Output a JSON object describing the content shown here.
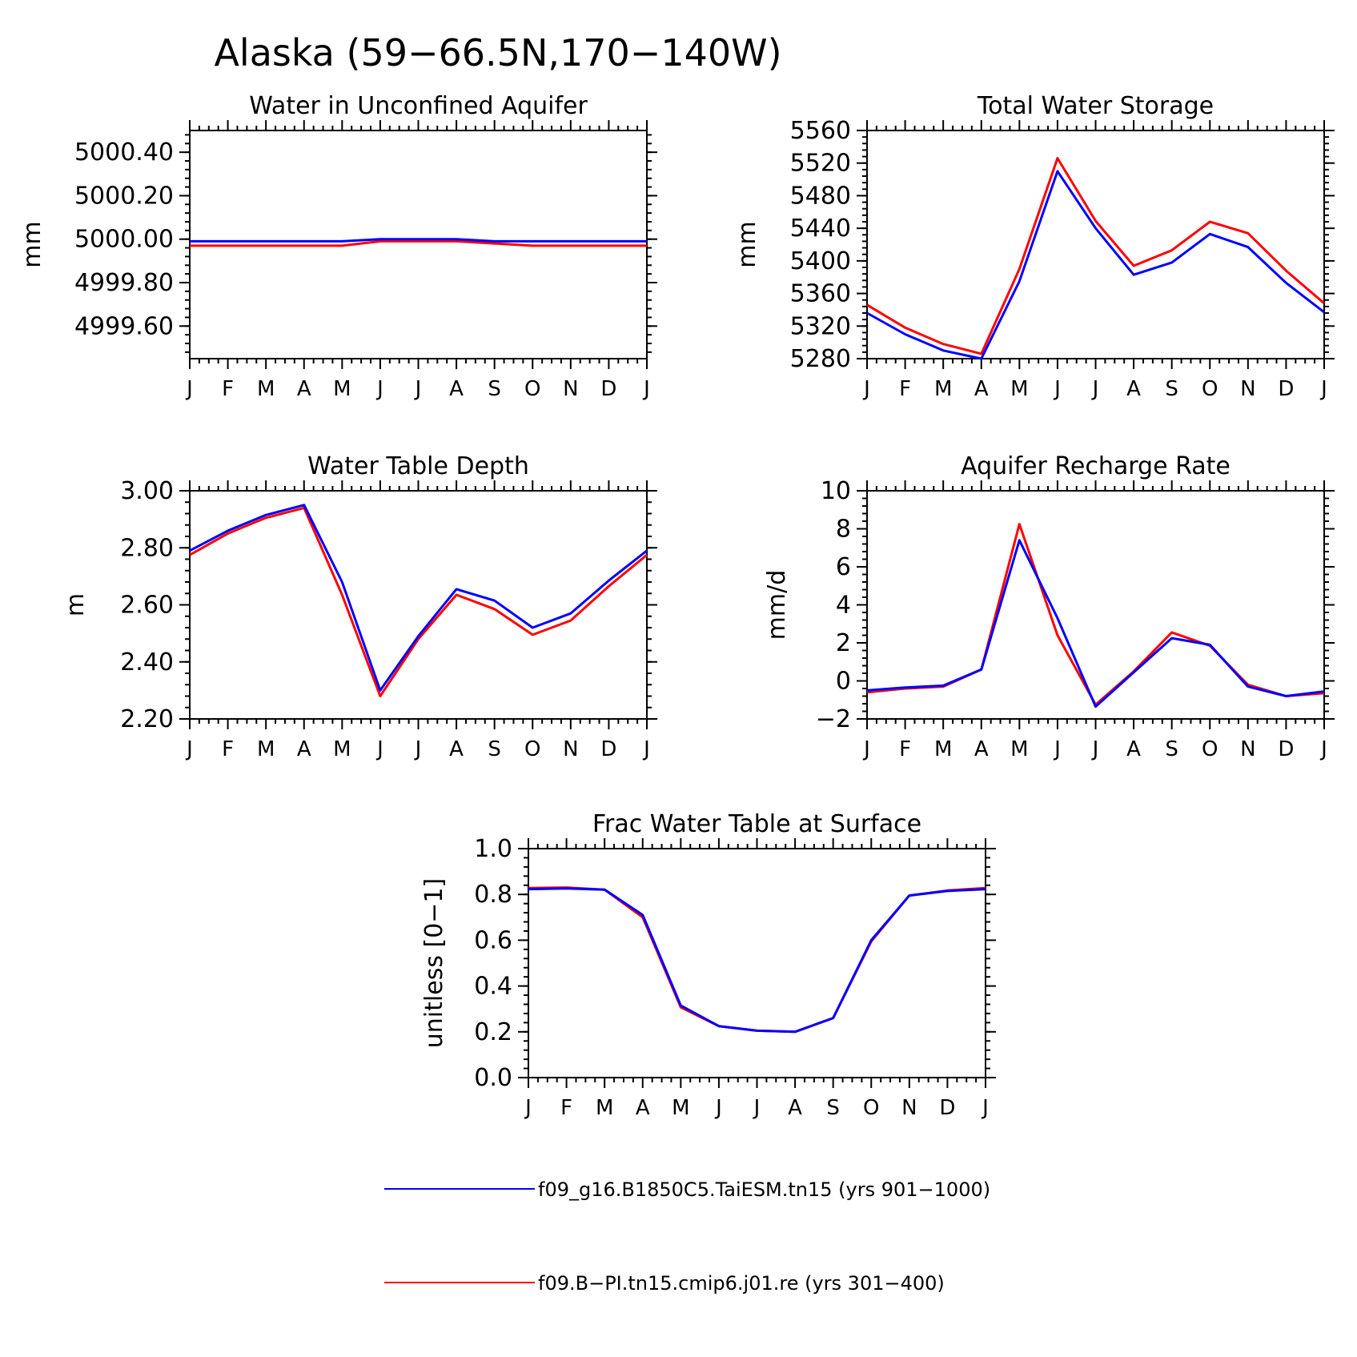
{
  "figure": {
    "title": "Alaska (59−66.5N,170−140W)"
  },
  "legend": [
    {
      "label": "f09_g16.B1850C5.TaiESM.tn15 (yrs 901−1000)",
      "color": "#0000ff"
    },
    {
      "label": "f09.B−PI.tn15.cmip6.j01.re (yrs 301−400)",
      "color": "#ff0000"
    }
  ],
  "chart_data": [
    {
      "type": "line",
      "title": "Water in Unconfined Aquifer",
      "ylabel": "mm",
      "x": [
        "J",
        "F",
        "M",
        "A",
        "M",
        "J",
        "J",
        "A",
        "S",
        "O",
        "N",
        "D",
        "J"
      ],
      "ylim": [
        4999.45,
        5000.5
      ],
      "yticks": [
        "4999.60",
        "4999.80",
        "5000.00",
        "5000.20",
        "5000.40"
      ],
      "yticks_values": [
        4999.6,
        4999.8,
        5000.0,
        5000.2,
        5000.4
      ],
      "series": [
        {
          "color": "#0000ff",
          "values": [
            4999.99,
            4999.99,
            4999.99,
            4999.99,
            4999.99,
            5000.0,
            5000.0,
            5000.0,
            4999.99,
            4999.99,
            4999.99,
            4999.99,
            4999.99
          ]
        },
        {
          "color": "#ff0000",
          "values": [
            4999.97,
            4999.97,
            4999.97,
            4999.97,
            4999.97,
            4999.99,
            4999.99,
            4999.99,
            4999.98,
            4999.97,
            4999.97,
            4999.97,
            4999.97
          ]
        }
      ]
    },
    {
      "type": "line",
      "title": "Total Water Storage",
      "ylabel": "mm",
      "x": [
        "J",
        "F",
        "M",
        "A",
        "M",
        "J",
        "J",
        "A",
        "S",
        "O",
        "N",
        "D",
        "J"
      ],
      "ylim": [
        5280,
        5560
      ],
      "yticks": [
        "5280",
        "5320",
        "5360",
        "5400",
        "5440",
        "5480",
        "5520",
        "5560"
      ],
      "yticks_values": [
        5280,
        5320,
        5360,
        5400,
        5440,
        5480,
        5520,
        5560
      ],
      "series": [
        {
          "color": "#0000ff",
          "values": [
            5336,
            5310,
            5290,
            5280,
            5375,
            5510,
            5440,
            5383,
            5398,
            5433,
            5417,
            5373,
            5337
          ]
        },
        {
          "color": "#ff0000",
          "values": [
            5346,
            5318,
            5298,
            5286,
            5390,
            5526,
            5449,
            5394,
            5413,
            5448,
            5434,
            5388,
            5348
          ]
        }
      ]
    },
    {
      "type": "line",
      "title": "Water Table Depth",
      "ylabel": "m",
      "x": [
        "J",
        "F",
        "M",
        "A",
        "M",
        "J",
        "J",
        "A",
        "S",
        "O",
        "N",
        "D",
        "J"
      ],
      "ylim": [
        2.2,
        3.0
      ],
      "yticks": [
        "2.20",
        "2.40",
        "2.60",
        "2.80",
        "3.00"
      ],
      "yticks_values": [
        2.2,
        2.4,
        2.6,
        2.8,
        3.0
      ],
      "series": [
        {
          "color": "#0000ff",
          "values": [
            2.79,
            2.86,
            2.915,
            2.95,
            2.68,
            2.3,
            2.49,
            2.655,
            2.615,
            2.52,
            2.57,
            2.685,
            2.79
          ]
        },
        {
          "color": "#ff0000",
          "values": [
            2.775,
            2.85,
            2.905,
            2.94,
            2.635,
            2.28,
            2.48,
            2.635,
            2.585,
            2.495,
            2.545,
            2.665,
            2.775
          ]
        }
      ]
    },
    {
      "type": "line",
      "title": "Aquifer Recharge Rate",
      "ylabel": "mm/d",
      "x": [
        "J",
        "F",
        "M",
        "A",
        "M",
        "J",
        "J",
        "A",
        "S",
        "O",
        "N",
        "D",
        "J"
      ],
      "ylim": [
        -2,
        10
      ],
      "yticks": [
        "−2",
        "0",
        "2",
        "4",
        "6",
        "8",
        "10"
      ],
      "yticks_values": [
        -2,
        0,
        2,
        4,
        6,
        8,
        10
      ],
      "series": [
        {
          "color": "#0000ff",
          "values": [
            -0.5,
            -0.35,
            -0.25,
            0.6,
            7.4,
            3.3,
            -1.35,
            0.45,
            2.25,
            1.9,
            -0.3,
            -0.8,
            -0.55
          ]
        },
        {
          "color": "#ff0000",
          "values": [
            -0.6,
            -0.4,
            -0.3,
            0.6,
            8.25,
            2.4,
            -1.25,
            0.5,
            2.55,
            1.85,
            -0.2,
            -0.8,
            -0.65
          ]
        }
      ]
    },
    {
      "type": "line",
      "title": "Frac Water Table at Surface",
      "ylabel": "unitless [0−1]",
      "x": [
        "J",
        "F",
        "M",
        "A",
        "M",
        "J",
        "J",
        "A",
        "S",
        "O",
        "N",
        "D",
        "J"
      ],
      "ylim": [
        0,
        1
      ],
      "yticks": [
        "0.0",
        "0.2",
        "0.4",
        "0.6",
        "0.8",
        "1.0"
      ],
      "yticks_values": [
        0,
        0.2,
        0.4,
        0.6,
        0.8,
        1.0
      ],
      "series": [
        {
          "color": "#0000ff",
          "values": [
            0.823,
            0.826,
            0.821,
            0.71,
            0.315,
            0.225,
            0.205,
            0.2,
            0.26,
            0.6,
            0.795,
            0.815,
            0.823
          ]
        },
        {
          "color": "#ff0000",
          "values": [
            0.828,
            0.83,
            0.821,
            0.7,
            0.307,
            0.225,
            0.205,
            0.2,
            0.26,
            0.595,
            0.795,
            0.817,
            0.828
          ]
        }
      ]
    }
  ]
}
